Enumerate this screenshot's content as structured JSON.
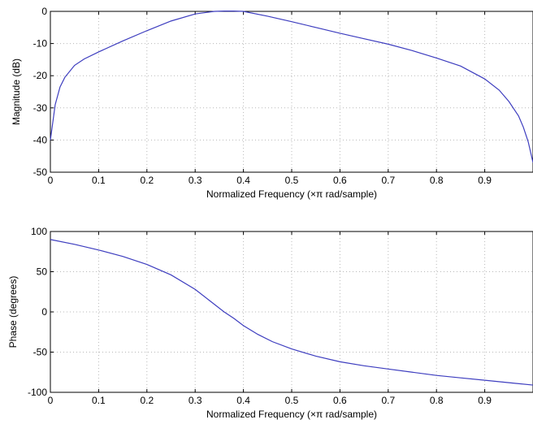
{
  "chart_data": [
    {
      "type": "line",
      "xlabel": "Normalized Frequency  (×π rad/sample)",
      "ylabel": "Magnitude (dB)",
      "xlim": [
        0,
        1
      ],
      "ylim": [
        -50,
        0
      ],
      "grid": true,
      "x_ticks": [
        0,
        0.1,
        0.2,
        0.3,
        0.4,
        0.5,
        0.6,
        0.7,
        0.8,
        0.9
      ],
      "x_tick_labels": [
        "0",
        "0.1",
        "0.2",
        "0.3",
        "0.4",
        "0.5",
        "0.6",
        "0.7",
        "0.8",
        "0.9"
      ],
      "y_ticks": [
        0,
        -10,
        -20,
        -30,
        -40,
        -50
      ],
      "y_tick_labels": [
        "0",
        "-10",
        "-20",
        "-30",
        "-40",
        "-50"
      ],
      "series": [
        {
          "color": "#3d3dbf",
          "x": [
            0.0,
            0.01,
            0.02,
            0.03,
            0.05,
            0.07,
            0.1,
            0.15,
            0.2,
            0.25,
            0.3,
            0.34,
            0.36,
            0.38,
            0.4,
            0.45,
            0.5,
            0.55,
            0.6,
            0.65,
            0.7,
            0.75,
            0.8,
            0.85,
            0.9,
            0.93,
            0.95,
            0.97,
            0.98,
            0.99,
            1.0
          ],
          "y": [
            -40,
            -29,
            -23.5,
            -20.5,
            -16.8,
            -14.8,
            -12.6,
            -9.2,
            -6,
            -3,
            -0.8,
            0,
            0.1,
            0.1,
            0,
            -1.5,
            -3.2,
            -5,
            -6.8,
            -8.5,
            -10.2,
            -12.2,
            -14.5,
            -17,
            -21,
            -24.5,
            -28,
            -32.5,
            -36,
            -40.5,
            -47
          ]
        }
      ]
    },
    {
      "type": "line",
      "xlabel": "Normalized Frequency  (×π rad/sample)",
      "ylabel": "Phase (degrees)",
      "xlim": [
        0,
        1
      ],
      "ylim": [
        -100,
        100
      ],
      "grid": true,
      "x_ticks": [
        0,
        0.1,
        0.2,
        0.3,
        0.4,
        0.5,
        0.6,
        0.7,
        0.8,
        0.9
      ],
      "x_tick_labels": [
        "0",
        "0.1",
        "0.2",
        "0.3",
        "0.4",
        "0.5",
        "0.6",
        "0.7",
        "0.8",
        "0.9"
      ],
      "y_ticks": [
        100,
        50,
        0,
        -50,
        -100
      ],
      "y_tick_labels": [
        "100",
        "50",
        "0",
        "-50",
        "-100"
      ],
      "series": [
        {
          "color": "#3d3dbf",
          "x": [
            0.0,
            0.05,
            0.1,
            0.15,
            0.2,
            0.25,
            0.3,
            0.33,
            0.36,
            0.38,
            0.4,
            0.43,
            0.46,
            0.5,
            0.55,
            0.6,
            0.65,
            0.7,
            0.75,
            0.8,
            0.85,
            0.9,
            0.95,
            1.0
          ],
          "y": [
            90,
            84,
            77,
            69,
            59,
            46,
            28,
            14,
            0,
            -8,
            -17,
            -28,
            -37,
            -46,
            -55,
            -62,
            -67,
            -71,
            -75,
            -79,
            -82,
            -85,
            -88,
            -91
          ]
        }
      ]
    }
  ]
}
